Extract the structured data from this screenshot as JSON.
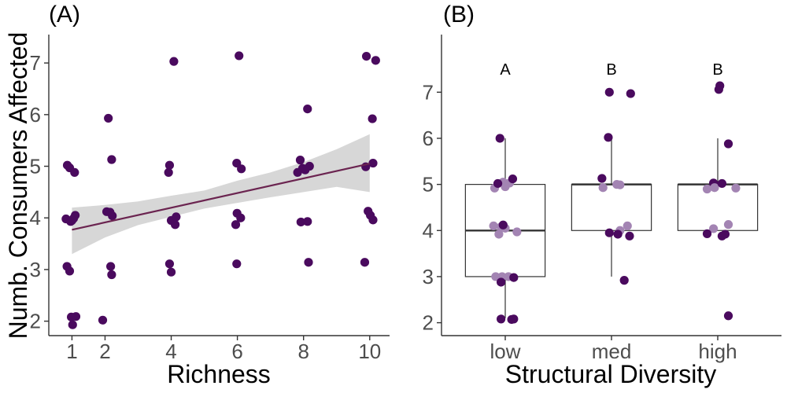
{
  "colors": {
    "point": "#4a0a5e",
    "box_point": "#a384b3",
    "fit_line": "#6b2450",
    "ci_band": "#bebebe",
    "axis": "#333333",
    "tick_text": "#4d4d4d"
  },
  "chart_data": [
    {
      "panel_label": "(A)",
      "type": "scatter",
      "xlabel": "Richness",
      "ylabel": "Numb. Consumers Affected",
      "xlim": [
        0.3,
        10.6
      ],
      "ylim": [
        1.72,
        7.55
      ],
      "x_ticks": [
        1,
        2,
        4,
        6,
        8,
        10
      ],
      "y_ticks": [
        2,
        3,
        4,
        5,
        6,
        7
      ],
      "grid": false,
      "points": [
        {
          "x": 0.86,
          "y": 5.02
        },
        {
          "x": 0.93,
          "y": 4.97
        },
        {
          "x": 1.08,
          "y": 4.88
        },
        {
          "x": 0.82,
          "y": 3.98
        },
        {
          "x": 0.96,
          "y": 3.93
        },
        {
          "x": 1.05,
          "y": 3.99
        },
        {
          "x": 1.1,
          "y": 4.05
        },
        {
          "x": 1.0,
          "y": 3.95
        },
        {
          "x": 0.85,
          "y": 3.06
        },
        {
          "x": 0.93,
          "y": 2.97
        },
        {
          "x": 0.98,
          "y": 2.08
        },
        {
          "x": 1.12,
          "y": 2.09
        },
        {
          "x": 1.02,
          "y": 1.93
        },
        {
          "x": 2.1,
          "y": 5.93
        },
        {
          "x": 2.2,
          "y": 5.13
        },
        {
          "x": 2.05,
          "y": 4.12
        },
        {
          "x": 2.15,
          "y": 4.11
        },
        {
          "x": 2.22,
          "y": 4.04
        },
        {
          "x": 2.17,
          "y": 3.06
        },
        {
          "x": 2.2,
          "y": 2.9
        },
        {
          "x": 1.93,
          "y": 2.02
        },
        {
          "x": 4.08,
          "y": 7.03
        },
        {
          "x": 3.95,
          "y": 5.02
        },
        {
          "x": 3.92,
          "y": 4.88
        },
        {
          "x": 4.0,
          "y": 3.95
        },
        {
          "x": 4.15,
          "y": 4.02
        },
        {
          "x": 4.12,
          "y": 3.87
        },
        {
          "x": 3.95,
          "y": 3.11
        },
        {
          "x": 4.0,
          "y": 2.95
        },
        {
          "x": 6.05,
          "y": 7.14
        },
        {
          "x": 5.98,
          "y": 5.06
        },
        {
          "x": 6.12,
          "y": 4.95
        },
        {
          "x": 5.99,
          "y": 4.09
        },
        {
          "x": 6.1,
          "y": 4.0
        },
        {
          "x": 5.95,
          "y": 3.87
        },
        {
          "x": 5.98,
          "y": 3.11
        },
        {
          "x": 8.12,
          "y": 6.11
        },
        {
          "x": 7.9,
          "y": 5.12
        },
        {
          "x": 7.97,
          "y": 4.96
        },
        {
          "x": 8.18,
          "y": 5.0
        },
        {
          "x": 7.82,
          "y": 4.88
        },
        {
          "x": 8.05,
          "y": 4.93
        },
        {
          "x": 7.92,
          "y": 3.92
        },
        {
          "x": 8.12,
          "y": 3.93
        },
        {
          "x": 8.15,
          "y": 3.14
        },
        {
          "x": 9.9,
          "y": 7.13
        },
        {
          "x": 10.18,
          "y": 7.05
        },
        {
          "x": 10.08,
          "y": 5.92
        },
        {
          "x": 10.1,
          "y": 5.06
        },
        {
          "x": 9.88,
          "y": 4.99
        },
        {
          "x": 9.95,
          "y": 4.13
        },
        {
          "x": 10.02,
          "y": 4.05
        },
        {
          "x": 10.1,
          "y": 3.96
        },
        {
          "x": 9.85,
          "y": 3.14
        }
      ],
      "fit": {
        "x": [
          1,
          10
        ],
        "y": [
          3.77,
          5.05
        ]
      },
      "ci": {
        "x": [
          1,
          2,
          3,
          4,
          5,
          6,
          7,
          8,
          9,
          10
        ],
        "lower": [
          3.3,
          3.62,
          3.86,
          4.02,
          4.18,
          4.29,
          4.4,
          4.5,
          4.6,
          4.5
        ],
        "upper": [
          4.2,
          4.25,
          4.32,
          4.43,
          4.53,
          4.72,
          4.88,
          5.08,
          5.33,
          5.62
        ]
      }
    },
    {
      "panel_label": "(B)",
      "type": "box",
      "xlabel": "Structural Diversity",
      "ylabel": "",
      "ylim": [
        1.72,
        8.25
      ],
      "y_ticks": [
        2,
        3,
        4,
        5,
        6,
        7
      ],
      "grid": false,
      "categories": [
        "low",
        "med",
        "high"
      ],
      "significance": [
        "A",
        "B",
        "B"
      ],
      "boxes": [
        {
          "q1": 3,
          "median": 4,
          "q3": 5,
          "whisker_low": 2.1,
          "whisker_high": 6.0
        },
        {
          "q1": 4,
          "median": 5,
          "q3": 5,
          "whisker_low": 3.0,
          "whisker_high": 6.0
        },
        {
          "q1": 4,
          "median": 5,
          "q3": 5,
          "whisker_low": 4.0,
          "whisker_high": 6.0
        }
      ],
      "points": [
        [
          {
            "x": 0.95,
            "y": 6.0,
            "c": "dark"
          },
          {
            "x": 0.98,
            "y": 5.05,
            "c": "light"
          },
          {
            "x": 1.04,
            "y": 5.03,
            "c": "light"
          },
          {
            "x": 1.07,
            "y": 5.12,
            "c": "dark"
          },
          {
            "x": 0.9,
            "y": 4.92,
            "c": "light"
          },
          {
            "x": 1.0,
            "y": 4.95,
            "c": "light"
          },
          {
            "x": 0.93,
            "y": 5.02,
            "c": "dark"
          },
          {
            "x": 0.89,
            "y": 4.1,
            "c": "light"
          },
          {
            "x": 0.96,
            "y": 4.08,
            "c": "light"
          },
          {
            "x": 1.0,
            "y": 4.05,
            "c": "light"
          },
          {
            "x": 0.94,
            "y": 3.92,
            "c": "light"
          },
          {
            "x": 1.11,
            "y": 3.97,
            "c": "light"
          },
          {
            "x": 0.98,
            "y": 4.12,
            "c": "dark"
          },
          {
            "x": 0.91,
            "y": 3.0,
            "c": "light"
          },
          {
            "x": 0.97,
            "y": 3.0,
            "c": "light"
          },
          {
            "x": 1.03,
            "y": 3.0,
            "c": "light"
          },
          {
            "x": 0.96,
            "y": 2.88,
            "c": "dark"
          },
          {
            "x": 1.08,
            "y": 2.98,
            "c": "dark"
          },
          {
            "x": 0.96,
            "y": 2.08,
            "c": "dark"
          },
          {
            "x": 1.06,
            "y": 2.07,
            "c": "dark"
          },
          {
            "x": 1.08,
            "y": 2.08,
            "c": "dark"
          }
        ],
        [
          {
            "x": 1.98,
            "y": 7.0,
            "c": "dark"
          },
          {
            "x": 2.18,
            "y": 6.97,
            "c": "dark"
          },
          {
            "x": 1.97,
            "y": 6.02,
            "c": "dark"
          },
          {
            "x": 1.91,
            "y": 5.13,
            "c": "dark"
          },
          {
            "x": 1.92,
            "y": 4.93,
            "c": "light"
          },
          {
            "x": 2.05,
            "y": 5.0,
            "c": "light"
          },
          {
            "x": 2.08,
            "y": 4.99,
            "c": "light"
          },
          {
            "x": 2.15,
            "y": 4.1,
            "c": "light"
          },
          {
            "x": 2.08,
            "y": 4.0,
            "c": "light"
          },
          {
            "x": 1.98,
            "y": 3.95,
            "c": "dark"
          },
          {
            "x": 2.06,
            "y": 3.92,
            "c": "dark"
          },
          {
            "x": 2.17,
            "y": 3.88,
            "c": "dark"
          },
          {
            "x": 2.12,
            "y": 2.92,
            "c": "dark"
          }
        ],
        [
          {
            "x": 3.02,
            "y": 7.14,
            "c": "dark"
          },
          {
            "x": 3.01,
            "y": 7.06,
            "c": "dark"
          },
          {
            "x": 3.1,
            "y": 5.88,
            "c": "dark"
          },
          {
            "x": 2.96,
            "y": 5.03,
            "c": "dark"
          },
          {
            "x": 2.9,
            "y": 4.9,
            "c": "light"
          },
          {
            "x": 2.97,
            "y": 4.93,
            "c": "light"
          },
          {
            "x": 3.17,
            "y": 4.92,
            "c": "light"
          },
          {
            "x": 3.04,
            "y": 5.02,
            "c": "dark"
          },
          {
            "x": 3.1,
            "y": 4.13,
            "c": "light"
          },
          {
            "x": 2.96,
            "y": 4.04,
            "c": "light"
          },
          {
            "x": 2.9,
            "y": 3.93,
            "c": "dark"
          },
          {
            "x": 3.04,
            "y": 3.88,
            "c": "dark"
          },
          {
            "x": 3.07,
            "y": 3.92,
            "c": "dark"
          },
          {
            "x": 3.1,
            "y": 2.15,
            "c": "dark"
          }
        ]
      ]
    }
  ]
}
